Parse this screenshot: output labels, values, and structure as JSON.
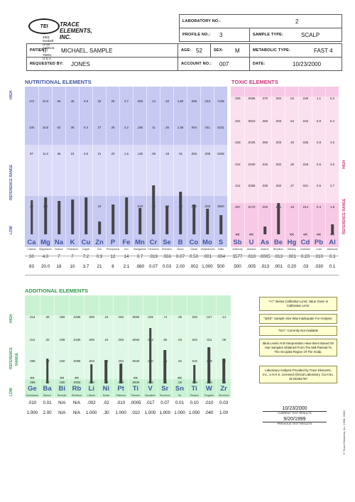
{
  "header": {
    "lab_name": "TRACE ELEMENTS, INC.",
    "logo_text": "TEI",
    "address": "4501 Sunbelt Drive · Addison, Tx · 75001 · U.S.A.",
    "laboratory_no_label": "LABORATORY NO.:",
    "laboratory_no": "2",
    "profile_no_label": "PROFILE NO.:",
    "profile_no": "3",
    "sample_type_label": "SAMPLE TYPE:",
    "sample_type": "SCALP",
    "patient_label": "PATIENT:",
    "patient": "MICHAEL, SAMPLE",
    "age_label": "AGE:",
    "age": "52",
    "sex_label": "SEX:",
    "sex": "M",
    "metabolic_label": "METABOLIC TYPE:",
    "metabolic": "FAST 4",
    "requested_label": "REQUESTED BY:",
    "requested": "JONES",
    "account_label": "ACCOUNT NO.:",
    "account": "007",
    "date_label": "DATE:",
    "date": "10/23/2000"
  },
  "axis_labels": {
    "high": "HIGH",
    "low": "LOW",
    "reference_range": "REFERENCE RANGE",
    "reference": "REFERENCE",
    "range": "RANGE"
  },
  "nutritional": {
    "title": "NUTRITIONAL ELEMENTS",
    "elements": [
      {
        "sym": "Ca",
        "name": "Calcium",
        "ticks": [
          "172",
          "135",
          "97",
          "22"
        ],
        "v1": "30",
        "v2": "83",
        "level": 0.44
      },
      {
        "sym": "Mg",
        "name": "Magnesium",
        "ticks": [
          "20.0",
          "15.5",
          "11.0",
          "2.0"
        ],
        "v1": "4.0",
        "v2": "20.0",
        "level": 0.47
      },
      {
        "sym": "Na",
        "name": "Sodium",
        "ticks": [
          "66",
          "52",
          "36",
          "4"
        ],
        "v1": "7",
        "v2": "18",
        "level": 0.43
      },
      {
        "sym": "K",
        "name": "Potassium",
        "ticks": [
          "46",
          "35",
          "24",
          "2"
        ],
        "v1": "7",
        "v2": "10",
        "level": 0.45
      },
      {
        "sym": "Cu",
        "name": "Copper",
        "ticks": [
          "6.9",
          "5.4",
          "3.9",
          ".9"
        ],
        "v1": "7.2",
        "v2": "3.7",
        "level": 0.47
      },
      {
        "sym": "Zn",
        "name": "Zinc",
        "ticks": [
          "32",
          "27",
          "21",
          "10"
        ],
        "v1": "0.9",
        "v2": "21",
        "level": 0.16
      },
      {
        "sym": "P",
        "name": "Phosphorus",
        "ticks": [
          "29",
          "25",
          "20",
          "11"
        ],
        "v1": "12",
        "v2": "8",
        "level": 0.38
      },
      {
        "sym": "Fe",
        "name": "Iron",
        "ticks": [
          "2.7",
          "2.2",
          "1.6",
          ".5"
        ],
        "v1": "14",
        "v2": "2.1",
        "level": 0.47
      },
      {
        "sym": "Mn",
        "name": "Manganese",
        "ticks": [
          ".250",
          ".190",
          ".130",
          ".010"
        ],
        "v1": "0.7",
        "v2": ".060",
        "level": 0.34
      },
      {
        "sym": "Cr",
        "name": "Chromium",
        "ticks": [
          ".14",
          ".11",
          ".08",
          ".02"
        ],
        "v1": ".019",
        "v2": "0.07",
        "level": 0.63
      },
      {
        "sym": "Se",
        "name": "Selenium",
        "ticks": [
          ".33",
          ".26",
          ".18",
          ".03"
        ],
        "v1": ".066",
        "v2": "0.03",
        "level": 0.36
      },
      {
        "sym": "B",
        "name": "Boron",
        "ticks": [
          "1.80",
          "1.36",
          ".91",
          ".02"
        ],
        "v1": "0.07",
        "v2": "2.00",
        "level": 0.55
      },
      {
        "sym": "Co",
        "name": "Cobalt",
        "ticks": [
          ".005",
          ".004",
          ".003",
          ".001"
        ],
        "v1": "0.50",
        "v2": ".002",
        "level": 0.38
      },
      {
        "sym": "Mo",
        "name": "Molybdenum",
        "ticks": [
          ".013",
          ".011",
          ".008",
          ".003"
        ],
        "v1": ".001",
        "v2": "1.000",
        "level": 0.33
      },
      {
        "sym": "S",
        "name": "Sulfur",
        "ticks": [
          "7136",
          "6231",
          "5336",
          "3540"
        ],
        "v1": ".004",
        "v2": "500",
        "level": 0.25
      }
    ]
  },
  "nutritional_low_ticks": [
    "5",
    "7",
    "",
    ".000",
    ".001",
    "2651"
  ],
  "toxic": {
    "title": "TOXIC ELEMENTS",
    "elements": [
      {
        "sym": "Sb",
        "name": "Antimony",
        "ticks": [
          ".025",
          ".021",
          ".018",
          ".014",
          ".011",
          ".007"
        ],
        "v1": "3577",
        "v2": "500",
        "level": 0,
        "lt": "<<"
      },
      {
        "sym": "U",
        "name": "Uranium",
        "ticks": [
          ".0595",
          ".0510",
          ".0425",
          ".0340",
          ".0255",
          ".0170"
        ],
        "v1": ".010",
        "v2": ".005",
        "level": 0,
        "lt": "<<"
      },
      {
        "sym": "As",
        "name": "Arsenic",
        "ticks": [
          ".070",
          ".060",
          ".050",
          ".040",
          ".030",
          ".020"
        ],
        "v1": ".0005",
        "v2": ".013",
        "level": 0.1,
        "lt": ""
      },
      {
        "sym": "Be",
        "name": "Beryllium",
        "ticks": [
          ".004",
          ".003",
          ".003",
          ".002",
          ".002",
          ".001"
        ],
        "v1": ".013",
        "v2": ".001",
        "level": 0.4,
        "lt": ""
      },
      {
        "sym": "Hg",
        "name": "Mercury",
        "ticks": [
          ".63",
          ".54",
          ".45",
          ".36",
          ".27",
          ".18"
        ],
        "v1": ".001",
        "v2": "0.20",
        "level": 0,
        "lt": "<<"
      },
      {
        "sym": "Cd",
        "name": "Cadmium",
        "ticks": [
          ".049",
          ".042",
          ".035",
          ".028",
          ".021",
          ".014"
        ],
        "v1": "0.20",
        "v2": ".03",
        "level": 0,
        "lt": "<<"
      },
      {
        "sym": "Pb",
        "name": "Lead",
        "ticks": [
          "1.1",
          "0.9",
          "0.8",
          "0.6",
          "0.5",
          "0.3"
        ],
        "v1": ".010",
        "v2": ".030",
        "level": 0,
        "lt": "<<"
      },
      {
        "sym": "Al",
        "name": "Aluminum",
        "ticks": [
          "6.3",
          "5.4",
          "4.5",
          "3.6",
          "2.7",
          "1.8"
        ],
        "v1": "0.3",
        "v2": "0.1",
        "level": 0.13,
        "lt": "<<"
      }
    ],
    "extra_values": {
      "pb2": "1.4",
      "al2": "1.0"
    }
  },
  "additional": {
    "title": "ADDITIONAL ELEMENTS",
    "elements": [
      {
        "sym": "Ge",
        "name": "Germanium",
        "ticks": [
          ".014",
          ".011",
          ".008",
          ".006"
        ],
        "v1": ".010",
        "v2": "1.000",
        "level": 0,
        "lt": "<<"
      },
      {
        "sym": "Ba",
        "name": "Barium",
        "ticks": [
          ".39",
          ".26",
          ".13",
          ".00"
        ],
        "v1": "0.01",
        "v2": "2.00",
        "level": 0.45,
        "lt": ""
      },
      {
        "sym": "Bi",
        "name": "Bismuth",
        "ticks": [
          ".059",
          ".039",
          ".020",
          ".000"
        ],
        "v1": "N/A",
        "v2": "N/A",
        "level": 0,
        "lt": "<<"
      },
      {
        "sym": "Rb",
        "name": "Rubidium",
        "ticks": [
          ".0285",
          ".0190",
          ".0095",
          ".0000"
        ],
        "v1": "N/A",
        "v2": "N/A",
        "level": 0,
        "lt": "<<"
      },
      {
        "sym": "Li",
        "name": "Lithium",
        "ticks": [
          ".009",
          ".006",
          ".003",
          ".000"
        ],
        "v1": ".002",
        "v2": "1.000",
        "level": 0.34,
        "lt": ""
      },
      {
        "sym": "Ni",
        "name": "Nickel",
        "ticks": [
          ".15",
          ".10",
          ".05",
          ".00"
        ],
        "v1": ".02",
        "v2": ".30",
        "level": 0.42,
        "lt": ""
      },
      {
        "sym": "Pt",
        "name": "Platinum",
        "ticks": [
          ".003",
          ".002",
          ".001",
          ".000"
        ],
        "v1": ".010",
        "v2": "1.000",
        "level": 0.36,
        "lt": ""
      },
      {
        "sym": "Ti",
        "name": "Titanium",
        "ticks": [
          ".0090",
          ".0060",
          ".0030",
          ".0000"
        ],
        "v1": ".0005",
        "v2": ".010",
        "level": 0,
        "lt": "<<"
      },
      {
        "sym": "V",
        "name": "Vanadium",
        "ticks": [
          ".029",
          ".014",
          ".010",
          ".002"
        ],
        "v1": ".017",
        "v2": "1.000",
        "level": 1.0,
        "lt": ""
      },
      {
        "sym": "Sr",
        "name": "Strontium",
        "ticks": [
          ".74",
          ".50",
          ".25",
          ".01"
        ],
        "v1": "0.07",
        "v2": "1.000",
        "level": 0.6,
        "lt": ""
      },
      {
        "sym": "Sn",
        "name": "Tin",
        "ticks": [
          ".05",
          ".03",
          ".02",
          ".00"
        ],
        "v1": "0.01",
        "v2": "1.000",
        "level": 0,
        "lt": "<<"
      },
      {
        "sym": "Ti",
        "name": "Titanium",
        "ticks": [
          ".030",
          ".020",
          ".010",
          ".000"
        ],
        "v1": "0.10",
        "v2": "1.000",
        "level": 0.33,
        "lt": ""
      },
      {
        "sym": "W",
        "name": "Tungsten",
        "ticks": [
          ".017",
          ".011",
          ".009",
          ".000"
        ],
        "v1": ".010",
        "v2": ".040",
        "level": 0.65,
        "lt": ""
      },
      {
        "sym": "Zr",
        "name": "Zirconium",
        "ticks": [
          ".14",
          ".09",
          ".04",
          ".00"
        ],
        "v1": "0.03",
        "v2": "1.00",
        "level": 0.45,
        "lt": ""
      }
    ]
  },
  "notes": [
    "\"<<\": Below Calibration Limit; Value Given Is Calibration Limit.",
    "\"QNS\": Sample Size Was Inadequate For Analysis.",
    "\"N/A\": Currently Not Available",
    "Ideal Levels And Interpretation Have Been Based On Hair Samples Obtained From The Mid-Parietal To The Occipital Region Of The Scalp.",
    "Laboratory Analysis Provided by Trace Elements, Inc., a H.H.S. Licensed Clinical Laboratory.   CLIA No. 45 D0481787"
  ],
  "results": {
    "current_date": "10/23/2000",
    "current_label": "CURRENT TEST RESULTS",
    "previous_date": "9/20/1999",
    "previous_label": "PREVIOUS TEST RESULTS"
  },
  "copyright": "© Trace Elements, Inc. 1998, 2000",
  "colors": {
    "nutritional": "#c6c9f2",
    "nutritional_ref": "#dcdcf8",
    "toxic": "#f8c9e6",
    "toxic_ref": "#fbe0ef",
    "additional": "#c9f2d3",
    "additional_ref": "#dff8e5",
    "symbol": "#3f55a0",
    "bar": "#444444"
  }
}
